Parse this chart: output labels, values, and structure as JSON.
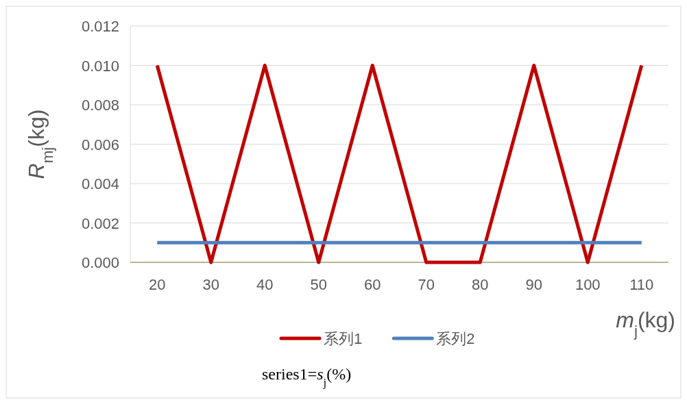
{
  "chart_data": {
    "type": "line",
    "ylabel": "R$_{mj}$(kg)",
    "xlabel": "m$_{j}$(kg)",
    "categories": [
      "20",
      "30",
      "40",
      "50",
      "60",
      "70",
      "80",
      "90",
      "100",
      "110"
    ],
    "series": [
      {
        "name": "系列1",
        "color": "#c00000",
        "values": [
          0.01,
          0.0,
          0.01,
          0.0,
          0.01,
          0.0,
          0.0,
          0.01,
          0.0,
          0.01
        ]
      },
      {
        "name": "系列2",
        "color": "#4f81bd",
        "values": [
          0.001,
          0.001,
          0.001,
          0.001,
          0.001,
          0.001,
          0.001,
          0.001,
          0.001,
          0.001
        ]
      }
    ],
    "ylim": [
      0,
      0.012
    ],
    "yticks": [
      {
        "value": 0,
        "label": "0.000"
      },
      {
        "value": 0.002,
        "label": "0.002"
      },
      {
        "value": 0.004,
        "label": "0.004"
      },
      {
        "value": 0.006,
        "label": "0.006"
      },
      {
        "value": 0.008,
        "label": "0.008"
      },
      {
        "value": 0.01,
        "label": "0.010"
      },
      {
        "value": 0.012,
        "label": "0.012"
      }
    ],
    "grid": "y",
    "legend": "bottom",
    "marker": "none",
    "line_style": "solid",
    "annotations": [
      "series1=s$_{j}$(%)"
    ]
  }
}
